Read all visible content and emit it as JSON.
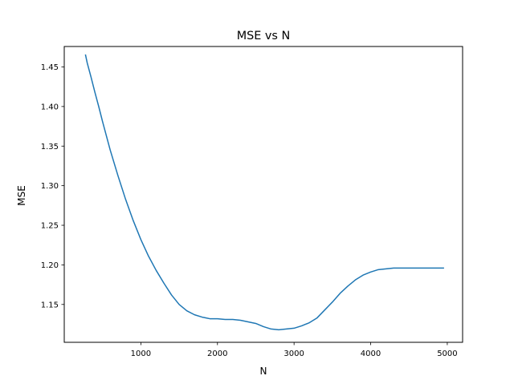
{
  "chart_data": {
    "type": "line",
    "title": "MSE vs N",
    "xlabel": "N",
    "ylabel": "MSE",
    "xlim": [
      0,
      5200
    ],
    "ylim": [
      1.1022,
      1.4758
    ],
    "xticks": [
      1000,
      2000,
      3000,
      4000,
      5000
    ],
    "yticks": [
      1.15,
      1.2,
      1.25,
      1.3,
      1.35,
      1.4,
      1.45
    ],
    "grid": false,
    "series": [
      {
        "color": "#1f77b4",
        "x": [
          278,
          300,
          350,
          400,
          450,
          500,
          600,
          700,
          800,
          900,
          1000,
          1100,
          1200,
          1300,
          1400,
          1500,
          1600,
          1700,
          1800,
          1900,
          2000,
          2100,
          2200,
          2300,
          2400,
          2500,
          2600,
          2700,
          2800,
          2900,
          3000,
          3100,
          3200,
          3300,
          3400,
          3500,
          3600,
          3700,
          3800,
          3900,
          4000,
          4100,
          4200,
          4300,
          4400,
          4500,
          4600,
          4700,
          4800,
          4900,
          4950
        ],
        "y": [
          1.465,
          1.455,
          1.437,
          1.418,
          1.4,
          1.381,
          1.345,
          1.313,
          1.283,
          1.256,
          1.232,
          1.211,
          1.193,
          1.177,
          1.162,
          1.15,
          1.142,
          1.137,
          1.134,
          1.132,
          1.132,
          1.131,
          1.131,
          1.13,
          1.128,
          1.126,
          1.122,
          1.119,
          1.118,
          1.119,
          1.12,
          1.123,
          1.127,
          1.133,
          1.143,
          1.153,
          1.164,
          1.173,
          1.181,
          1.187,
          1.191,
          1.194,
          1.195,
          1.196,
          1.196,
          1.196,
          1.196,
          1.196,
          1.196,
          1.196,
          1.196
        ]
      }
    ]
  }
}
